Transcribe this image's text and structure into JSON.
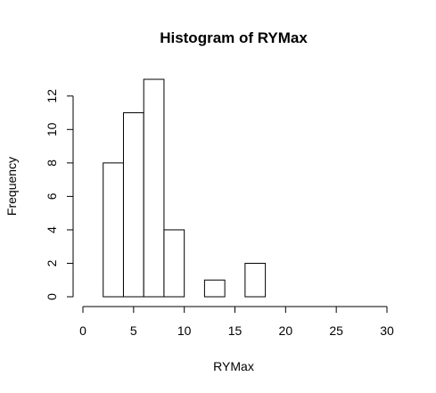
{
  "chart_data": {
    "type": "bar",
    "title": "Histogram of RYMax",
    "xlabel": "RYMax",
    "ylabel": "Frequency",
    "bins": [
      {
        "start": 2,
        "end": 4,
        "count": 8
      },
      {
        "start": 4,
        "end": 6,
        "count": 11
      },
      {
        "start": 6,
        "end": 8,
        "count": 13
      },
      {
        "start": 8,
        "end": 10,
        "count": 4
      },
      {
        "start": 10,
        "end": 12,
        "count": 0
      },
      {
        "start": 12,
        "end": 14,
        "count": 1
      },
      {
        "start": 14,
        "end": 16,
        "count": 0
      },
      {
        "start": 16,
        "end": 18,
        "count": 2
      }
    ],
    "xlim": [
      0,
      30
    ],
    "ylim": [
      0,
      13
    ],
    "x_ticks": [
      "0",
      "5",
      "10",
      "15",
      "20",
      "25",
      "30"
    ],
    "y_ticks": [
      "0",
      "2",
      "4",
      "6",
      "8",
      "10",
      "12"
    ],
    "grid": false,
    "bar_fill": "#ffffff",
    "bar_stroke": "#000000"
  }
}
